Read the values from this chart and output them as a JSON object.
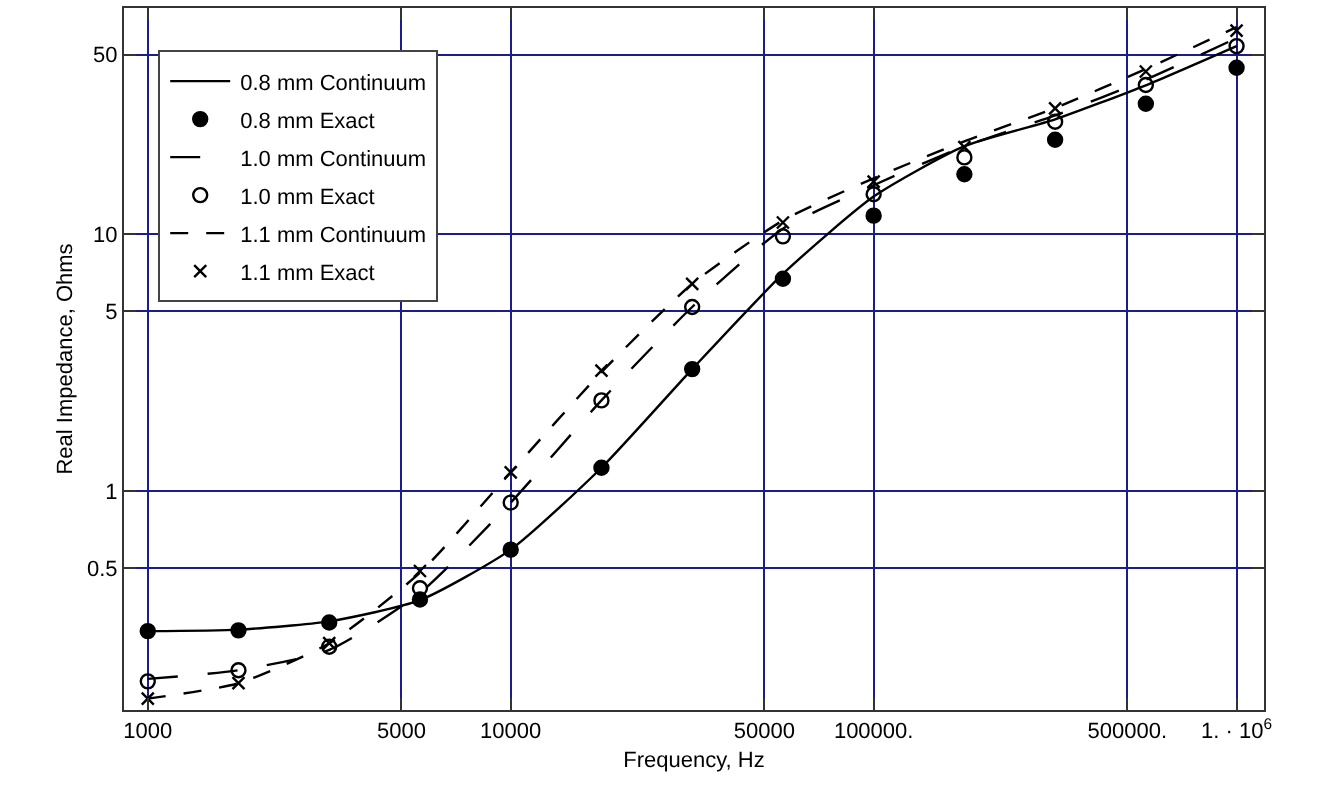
{
  "chart_data": {
    "type": "line",
    "xlabel": "Frequency, Hz",
    "ylabel": "Real Impedance, Ohms",
    "log": "xy",
    "grid": true,
    "legend": "top left",
    "x": [
      1000,
      1778,
      3162,
      5623,
      10000,
      17783,
      31623,
      56234,
      100000,
      177828,
      316228,
      562341,
      1000000
    ],
    "xlim": [
      860,
      1190000
    ],
    "ylim": [
      0.14,
      76
    ],
    "xticks": [
      1000,
      5000,
      10000,
      50000,
      {
        "value": 100000,
        "label": "100000."
      },
      {
        "value": 500000,
        "label": "500000."
      },
      {
        "value": 1000000,
        "label": "1. · 10$^{6}$"
      }
    ],
    "yticks": [
      0.5,
      1,
      5,
      10,
      50
    ],
    "series": [
      {
        "name": "0.8 mm Continuum",
        "line_style": "solid",
        "color": "#000000",
        "values": [
          0.284,
          0.288,
          0.31,
          0.375,
          0.59,
          1.23,
          2.98,
          7.0,
          14,
          22,
          28,
          38,
          54
        ]
      },
      {
        "name": "0.8 mm Exact",
        "type": "scatter",
        "marker": "circle",
        "color": "#000000",
        "values": [
          0.284,
          0.286,
          0.307,
          0.377,
          0.59,
          1.23,
          2.98,
          6.7,
          11.8,
          17.1,
          23.3,
          32.2,
          44.5
        ]
      },
      {
        "name": "1.0 mm Continuum",
        "line_style": "dashed",
        "color": "#000000",
        "values": [
          0.185,
          0.2,
          0.24,
          0.4,
          0.9,
          2.25,
          5.2,
          10.5,
          15.5,
          22,
          29,
          40,
          58
        ]
      },
      {
        "name": "1.0 mm Exact",
        "type": "scatter",
        "marker": "circle",
        "color": "#000000",
        "values": [
          0.181,
          0.2,
          0.247,
          0.417,
          0.9,
          2.25,
          5.2,
          9.8,
          14.3,
          19.9,
          27.4,
          38.1,
          54
        ]
      },
      {
        "name": "1.1 mm Continuum",
        "line_style": "dotted",
        "color": "#000000",
        "values": [
          0.155,
          0.178,
          0.255,
          0.48,
          1.18,
          2.9,
          6.4,
          11.3,
          16.5,
          23,
          31,
          44,
          64
        ]
      },
      {
        "name": "1.1 mm Exact",
        "type": "scatter",
        "marker": "cross",
        "color": "#000000",
        "values": [
          0.155,
          0.178,
          0.255,
          0.487,
          1.18,
          2.94,
          6.4,
          11.1,
          16,
          21.8,
          30.9,
          43,
          62
        ]
      }
    ]
  }
}
